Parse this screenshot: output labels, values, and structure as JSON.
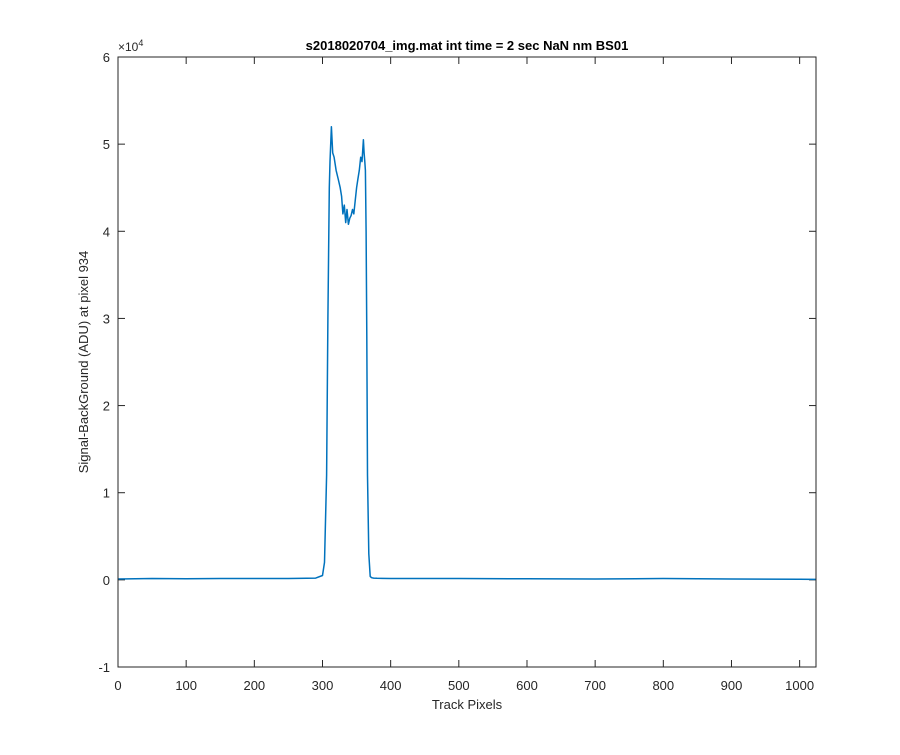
{
  "chart_data": {
    "type": "line",
    "title": "s2018020704_img.mat int time = 2 sec  NaN nm BS01",
    "xlabel": "Track Pixels",
    "ylabel": "Signal-BackGround (ADU) at pixel 934",
    "xlim": [
      0,
      1024
    ],
    "ylim": [
      -10000,
      60000
    ],
    "x_ticks": [
      "0",
      "100",
      "200",
      "300",
      "400",
      "500",
      "600",
      "700",
      "800",
      "900",
      "1000"
    ],
    "y_ticks": [
      "-1",
      "0",
      "1",
      "2",
      "3",
      "4",
      "5",
      "6"
    ],
    "y_exponent_base": "×10",
    "y_exponent_power": "4",
    "grid": false,
    "line_color": "#0072BD",
    "series": [
      {
        "x": [
          0,
          50,
          100,
          150,
          200,
          250,
          290,
          300,
          303,
          306,
          308,
          310,
          311,
          312,
          313,
          315,
          317,
          320,
          323,
          326,
          328,
          330,
          332,
          334,
          336,
          338,
          340,
          342,
          344,
          346,
          348,
          350,
          352,
          354,
          356,
          358,
          360,
          361,
          362,
          363,
          364,
          365,
          366,
          368,
          370,
          372,
          375,
          380,
          400,
          500,
          600,
          700,
          800,
          900,
          1000,
          1024
        ],
        "values": [
          100,
          150,
          120,
          150,
          150,
          150,
          200,
          500,
          2000,
          12000,
          30000,
          45000,
          48000,
          50000,
          52000,
          49000,
          48500,
          47000,
          46000,
          45000,
          44000,
          42000,
          43000,
          41000,
          42500,
          40800,
          41500,
          41800,
          42500,
          42000,
          43500,
          45000,
          46000,
          47000,
          48500,
          48000,
          50500,
          49000,
          48000,
          47000,
          40000,
          28000,
          12000,
          3000,
          400,
          250,
          200,
          180,
          150,
          150,
          120,
          100,
          150,
          100,
          80,
          50
        ]
      }
    ]
  }
}
